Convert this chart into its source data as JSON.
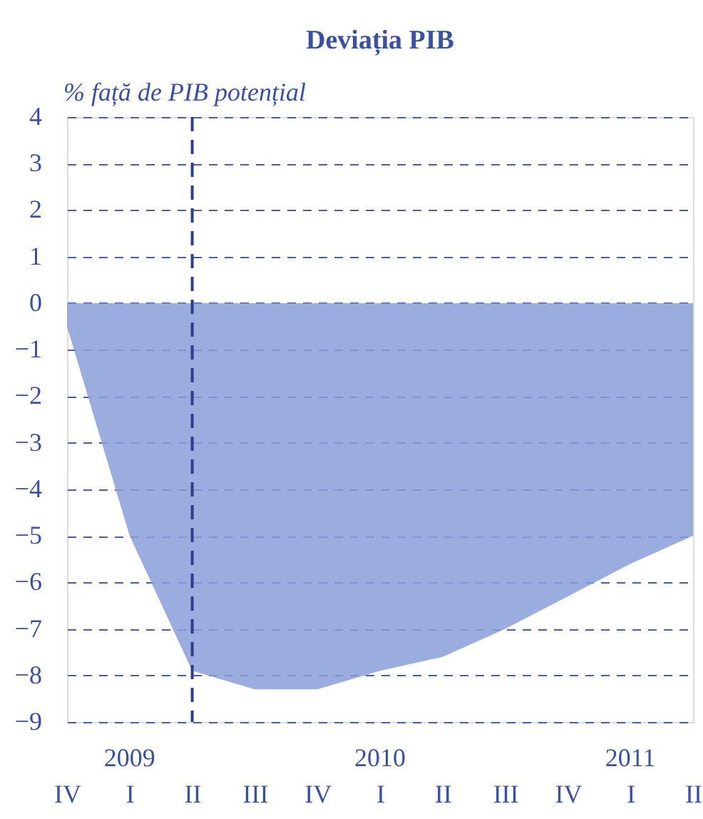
{
  "chart_data": {
    "type": "area",
    "title": "Deviația PIB",
    "ylabel": "% față de PIB potențial",
    "categories": [
      "IV",
      "I",
      "II",
      "III",
      "IV",
      "I",
      "II",
      "III",
      "IV",
      "I",
      "II"
    ],
    "series": [
      {
        "color": "#8a9dd8",
        "values": [
          -0.5,
          -5.0,
          -7.9,
          -8.3,
          -8.3,
          -7.9,
          -7.6,
          -7.0,
          -6.3,
          -5.6,
          -5.0
        ]
      }
    ],
    "ylim": [
      -9,
      4
    ],
    "yticks": [
      -9,
      -8,
      -7,
      -6,
      -5,
      -4,
      -3,
      -2,
      -1,
      0,
      1,
      2,
      3,
      4
    ],
    "grid": "y",
    "ref_lines": [
      {
        "axis": "x",
        "value": "II",
        "color": "#2b3f8f",
        "line_style": "dashed"
      }
    ],
    "annotations": [
      "2009",
      "2010",
      "2011"
    ]
  }
}
